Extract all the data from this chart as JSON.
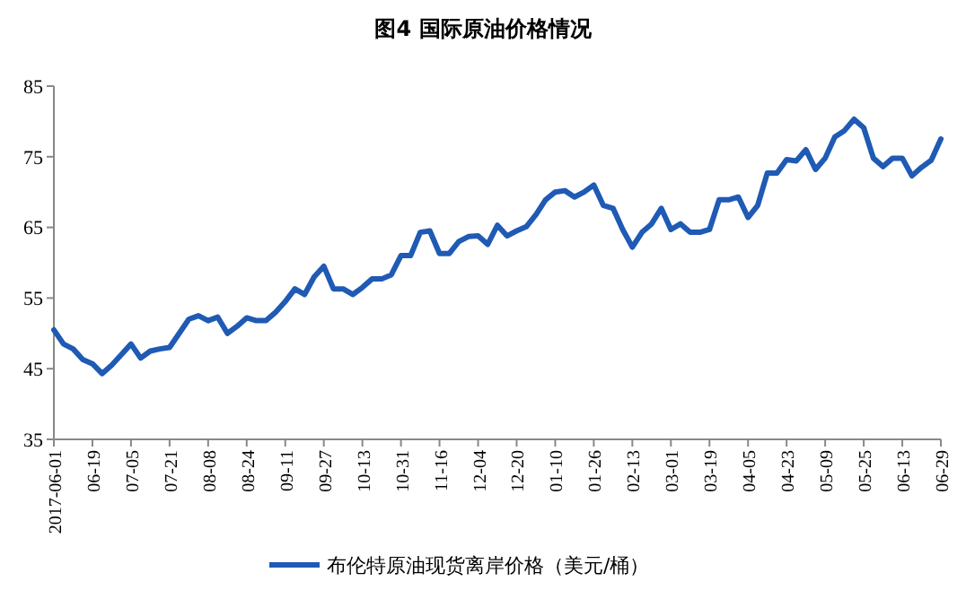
{
  "chart_data": {
    "type": "line",
    "title": "图4 国际原油价格情况",
    "categories": [
      "2017-06-01",
      null,
      null,
      null,
      "06-19",
      null,
      null,
      null,
      "07-05",
      null,
      null,
      null,
      "07-21",
      null,
      null,
      null,
      "08-08",
      null,
      null,
      null,
      "08-24",
      null,
      null,
      null,
      "09-11",
      null,
      null,
      null,
      "09-27",
      null,
      null,
      null,
      "10-13",
      null,
      null,
      null,
      "10-31",
      null,
      null,
      null,
      "11-16",
      null,
      null,
      null,
      "12-04",
      null,
      null,
      null,
      "12-20",
      null,
      null,
      null,
      "01-10",
      null,
      null,
      null,
      "01-26",
      null,
      null,
      null,
      "02-13",
      null,
      null,
      null,
      "03-01",
      null,
      null,
      null,
      "03-19",
      null,
      null,
      null,
      "04-05",
      null,
      null,
      null,
      "04-23",
      null,
      null,
      null,
      "05-09",
      null,
      null,
      null,
      "05-25",
      null,
      null,
      null,
      "06-13",
      null,
      null,
      null,
      "06-29"
    ],
    "series": [
      {
        "name": "布伦特原油现货离岸价格（美元/桶）",
        "color": "#1f5ab4",
        "values": [
          50.5,
          48.5,
          47.8,
          46.3,
          45.7,
          44.3,
          45.5,
          47,
          48.5,
          46.5,
          47.5,
          47.8,
          48,
          50,
          52,
          52.5,
          51.8,
          52.3,
          50,
          51,
          52.2,
          51.8,
          51.8,
          53,
          54.5,
          56.3,
          55.5,
          58,
          59.5,
          56.3,
          56.3,
          55.5,
          56.5,
          57.7,
          57.7,
          58.3,
          61,
          61,
          64.3,
          64.5,
          61.3,
          61.3,
          63,
          63.7,
          63.8,
          62.6,
          65.3,
          63.8,
          64.5,
          65.1,
          66.8,
          68.9,
          70,
          70.2,
          69.3,
          70,
          71,
          68.1,
          67.7,
          64.7,
          62.2,
          64.3,
          65.5,
          67.7,
          64.7,
          65.5,
          64.3,
          64.3,
          64.7,
          68.9,
          68.9,
          69.3,
          66.4,
          68.1,
          72.7,
          72.7,
          74.6,
          74.4,
          76,
          73.2,
          74.8,
          77.8,
          78.7,
          80.3,
          79.1,
          74.8,
          73.6,
          74.8,
          74.8,
          72.3,
          73.5,
          74.5,
          77.5
        ]
      }
    ],
    "ylim": [
      35,
      85
    ],
    "yticks": [
      35,
      45,
      55,
      65,
      75,
      85
    ],
    "legend": "bottom",
    "line_style": "solid",
    "marker": "none"
  }
}
